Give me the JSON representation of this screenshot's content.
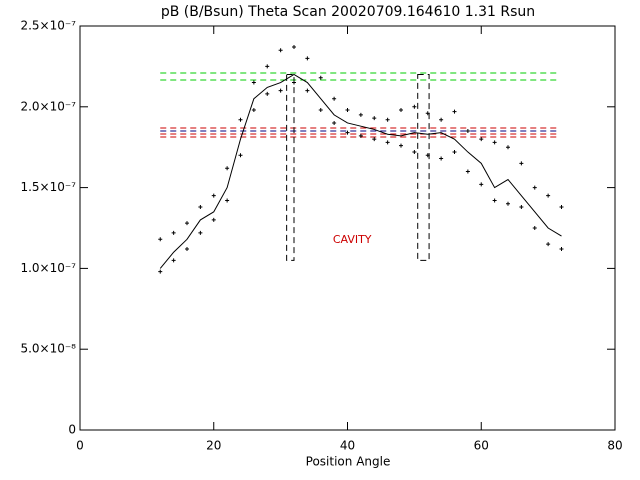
{
  "chart_data": {
    "type": "scatter",
    "title": "pB (B/Bsun) Theta Scan 20020709.164610 1.31 Rsun",
    "xlabel": "Position Angle",
    "xlim": [
      0,
      80
    ],
    "xticks": [
      0,
      20,
      40,
      60,
      80
    ],
    "ylim": [
      0,
      2.5e-07
    ],
    "yticks": [
      0,
      {
        "value": 5e-08,
        "label": "5.0×10⁻⁸"
      },
      {
        "value": 1e-07,
        "label": "1.0×10⁻⁷"
      },
      {
        "value": 1.5e-07,
        "label": "1.5×10⁻⁷"
      },
      {
        "value": 2e-07,
        "label": "2.0×10⁻⁷"
      },
      {
        "value": 2.5e-07,
        "label": "2.5×10⁻⁷"
      }
    ],
    "x": [
      12,
      14,
      16,
      18,
      20,
      22,
      24,
      26,
      28,
      30,
      32,
      34,
      36,
      38,
      40,
      42,
      44,
      46,
      48,
      50,
      52,
      54,
      56,
      58,
      60,
      62,
      64,
      66,
      68,
      70,
      72
    ],
    "series": [
      {
        "mode": "markers",
        "color": "#000000",
        "values": [
          1.18e-07,
          1.22e-07,
          1.28e-07,
          1.38e-07,
          1.45e-07,
          1.62e-07,
          1.92e-07,
          2.15e-07,
          2.25e-07,
          2.35e-07,
          2.37e-07,
          2.3e-07,
          2.18e-07,
          2.05e-07,
          1.98e-07,
          1.95e-07,
          1.93e-07,
          1.92e-07,
          1.98e-07,
          2e-07,
          1.96e-07,
          1.92e-07,
          1.97e-07,
          1.85e-07,
          1.8e-07,
          1.78e-07,
          1.75e-07,
          1.65e-07,
          1.5e-07,
          1.45e-07,
          1.38e-07
        ]
      },
      {
        "mode": "markers",
        "color": "#000000",
        "values": [
          9.8e-08,
          1.05e-07,
          1.12e-07,
          1.22e-07,
          1.3e-07,
          1.42e-07,
          1.7e-07,
          1.98e-07,
          2.08e-07,
          2.1e-07,
          2.15e-07,
          2.1e-07,
          1.98e-07,
          1.9e-07,
          1.84e-07,
          1.82e-07,
          1.8e-07,
          1.78e-07,
          1.76e-07,
          1.72e-07,
          1.7e-07,
          1.68e-07,
          1.72e-07,
          1.6e-07,
          1.52e-07,
          1.42e-07,
          1.4e-07,
          1.38e-07,
          1.25e-07,
          1.15e-07,
          1.12e-07
        ]
      },
      {
        "mode": "line",
        "color": "#000000",
        "values": [
          1e-07,
          1.1e-07,
          1.18e-07,
          1.3e-07,
          1.35e-07,
          1.5e-07,
          1.8e-07,
          2.05e-07,
          2.12e-07,
          2.15e-07,
          2.2e-07,
          2.15e-07,
          2.05e-07,
          1.95e-07,
          1.9e-07,
          1.88e-07,
          1.86e-07,
          1.83e-07,
          1.82e-07,
          1.84e-07,
          1.83e-07,
          1.84e-07,
          1.8e-07,
          1.72e-07,
          1.65e-07,
          1.5e-07,
          1.55e-07,
          1.45e-07,
          1.35e-07,
          1.25e-07,
          1.2e-07
        ]
      }
    ],
    "hline_span": [
      12,
      71.5
    ],
    "hlines": [
      {
        "value": 2.209e-07,
        "color": "#00cc00"
      },
      {
        "value": 2.166e-07,
        "color": "#00cc00"
      },
      {
        "value": 1.869e-07,
        "color": "#cc0000"
      },
      {
        "value": 1.85e-07,
        "color": "#000080"
      },
      {
        "value": 1.832e-07,
        "color": "#cc0000"
      },
      {
        "value": 1.813e-07,
        "color": "#cc0000"
      }
    ],
    "regions": [
      {
        "x": [
          30.9,
          32.0
        ],
        "y": [
          1.05e-07,
          2.2e-07
        ]
      },
      {
        "x": [
          50.5,
          52.2
        ],
        "y": [
          1.05e-07,
          2.2e-07
        ]
      }
    ],
    "annotation": {
      "text": "CAVITY",
      "x": 40.7,
      "y": 1.176e-07,
      "color": "#cc0000"
    }
  }
}
